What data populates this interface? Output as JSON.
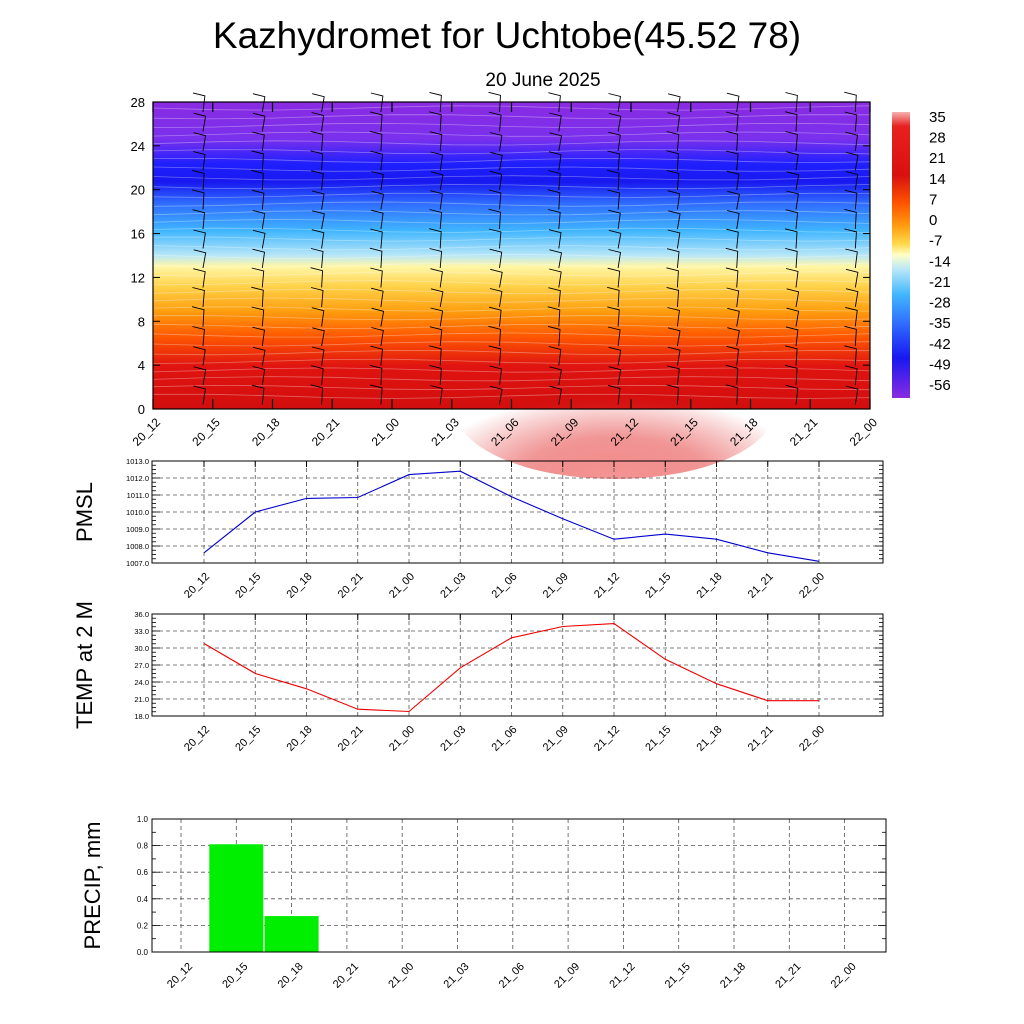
{
  "header": {
    "title": "Kazhydromet for Uchtobe(45.52 78)",
    "subtitle": "20 June 2025"
  },
  "chart_data": [
    {
      "type": "heatmap",
      "title": "",
      "ylim": [
        0,
        28
      ],
      "yticks": [
        "0",
        "4",
        "8",
        "12",
        "16",
        "20",
        "24",
        "28"
      ],
      "x": [
        "20_12",
        "20_15",
        "20_18",
        "20_21",
        "21_00",
        "21_03",
        "21_06",
        "21_09",
        "21_12",
        "21_15",
        "21_18",
        "21_21",
        "22_00"
      ],
      "colorbar_labels": [
        "35",
        "28",
        "21",
        "14",
        "7",
        "0",
        "-7",
        "-14",
        "-21",
        "-28",
        "-35",
        "-42",
        "-49",
        "-56"
      ],
      "colors": {
        "top": "#8a2be2",
        "upper": "#1f1fff",
        "mid": "#6ec8ff",
        "pale": "#ffffc0",
        "warm": "#ffa500",
        "low": "#dd1010",
        "hot": "#f08080"
      },
      "temperature_profile": [
        {
          "level": 0,
          "value": 32
        },
        {
          "level": 4,
          "value": 26
        },
        {
          "level": 8,
          "value": 12
        },
        {
          "level": 12,
          "value": -5
        },
        {
          "level": 13,
          "value": -12
        },
        {
          "level": 16,
          "value": -28
        },
        {
          "level": 20,
          "value": -50
        },
        {
          "level": 24,
          "value": -56
        },
        {
          "level": 28,
          "value": -60
        }
      ],
      "wind_barbs": "shown"
    },
    {
      "type": "line",
      "ylabel": "PMSL",
      "ylim": [
        1007.0,
        1013.0
      ],
      "yticks": [
        "1007.0",
        "1008.0",
        "1009.0",
        "1010.0",
        "1011.0",
        "1012.0",
        "1013.0"
      ],
      "x": [
        "20_12",
        "20_15",
        "20_18",
        "20_21",
        "21_00",
        "21_03",
        "21_06",
        "21_09",
        "21_12",
        "21_15",
        "21_18",
        "21_21",
        "22_00"
      ],
      "series": [
        {
          "values": [
            1007.6,
            1010.0,
            1010.8,
            1010.85,
            1012.2,
            1012.4,
            1010.9,
            1009.6,
            1008.4,
            1008.7,
            1008.4,
            1007.6,
            1007.1
          ],
          "color": "#0000cc"
        }
      ],
      "grid": true
    },
    {
      "type": "line",
      "ylabel": "TEMP at 2 M",
      "ylim": [
        18.0,
        36.0
      ],
      "yticks": [
        "18.0",
        "21.0",
        "24.0",
        "27.0",
        "30.0",
        "33.0",
        "36.0"
      ],
      "x": [
        "20_12",
        "20_15",
        "20_18",
        "20_21",
        "21_00",
        "21_03",
        "21_06",
        "21_09",
        "21_12",
        "21_15",
        "21_18",
        "21_21",
        "22_00"
      ],
      "series": [
        {
          "values": [
            30.8,
            25.5,
            22.8,
            19.2,
            18.8,
            26.5,
            31.8,
            33.8,
            34.3,
            28.0,
            23.7,
            20.7,
            20.7
          ],
          "color": "#ee0000"
        }
      ],
      "grid": true
    },
    {
      "type": "bar",
      "ylabel": "PRECIP, mm",
      "ylim": [
        0.0,
        1.0
      ],
      "yticks": [
        "0.0",
        "0.2",
        "0.4",
        "0.6",
        "0.8",
        "1.0"
      ],
      "categories": [
        "20_12",
        "20_15",
        "20_18",
        "20_21",
        "21_00",
        "21_03",
        "21_06",
        "21_09",
        "21_12",
        "21_15",
        "21_18",
        "21_21",
        "22_00"
      ],
      "values": [
        0,
        0.81,
        0.27,
        0,
        0,
        0,
        0,
        0,
        0,
        0,
        0,
        0,
        0
      ],
      "color": "#00ee00",
      "grid": true
    }
  ]
}
